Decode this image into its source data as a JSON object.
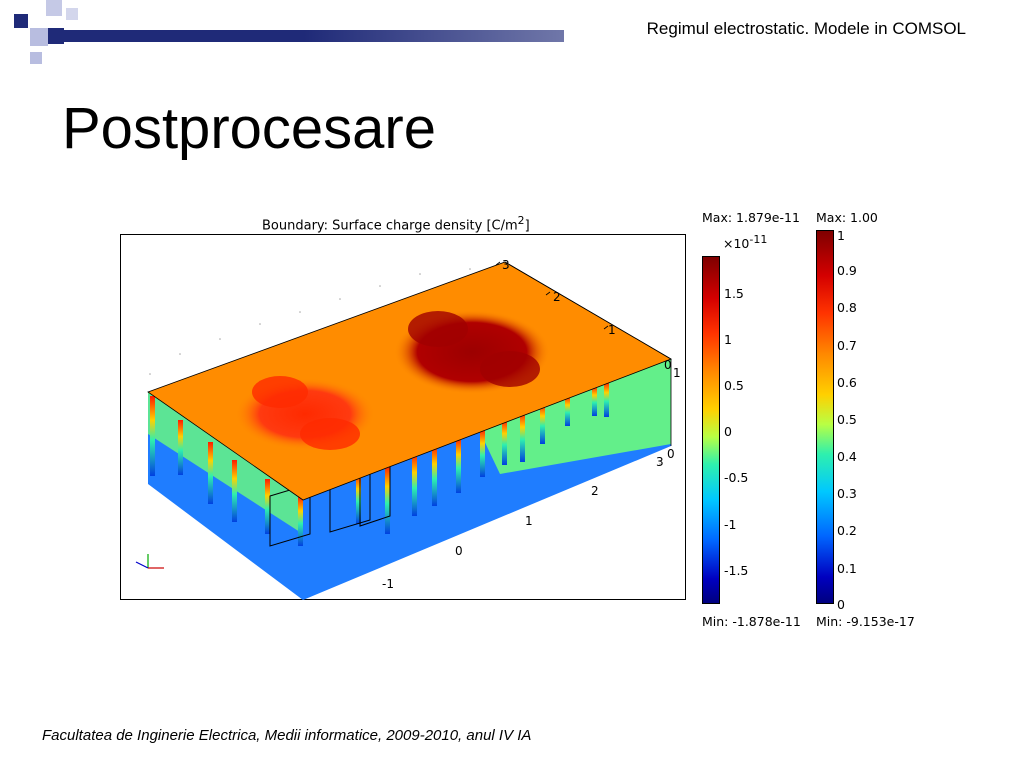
{
  "header": {
    "text": "Regimul electrostatic. Modele in COMSOL"
  },
  "slide": {
    "title": "Postprocesare"
  },
  "footer": {
    "text": "Facultatea de Inginerie Electrica, Medii informatice, 2009-2010, anul IV IA"
  },
  "plot": {
    "title": "Boundary: Surface charge density [C/m",
    "title_sup": "2",
    "title_end": "]",
    "axis_ticks": {
      "y_right": [
        "3",
        "2",
        "1",
        "0"
      ],
      "z_right": [
        "1",
        "0"
      ],
      "x_front": [
        "3",
        "2",
        "1",
        "0",
        "-1"
      ]
    }
  },
  "colorbar_left": {
    "max_label": "Max: 1.879e-11",
    "min_label": "Min: -1.878e-11",
    "exponent_base": "×10",
    "exponent_power": "-11",
    "ticks": [
      "1.5",
      "1",
      "0.5",
      "0",
      "-0.5",
      "-1",
      "-1.5"
    ]
  },
  "colorbar_right": {
    "max_label": "Max: 1.00",
    "min_label": "Min: -9.153e-17",
    "ticks": [
      "1",
      "0.9",
      "0.8",
      "0.7",
      "0.6",
      "0.5",
      "0.4",
      "0.3",
      "0.2",
      "0.1",
      "0"
    ]
  },
  "colors": {
    "deco_dark": "#1f2a78",
    "deco_light": "#b8bde0",
    "top_face": "#ff8c00",
    "side_blue": "#1f7dff",
    "side_green": "#63ef8a"
  }
}
